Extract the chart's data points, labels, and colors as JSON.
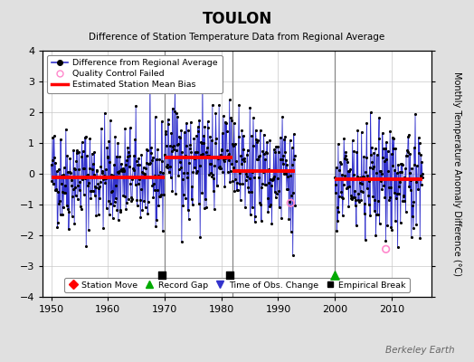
{
  "title": "TOULON",
  "subtitle": "Difference of Station Temperature Data from Regional Average",
  "ylabel": "Monthly Temperature Anomaly Difference (°C)",
  "xlim": [
    1948.5,
    2017
  ],
  "ylim": [
    -4,
    4
  ],
  "yticks": [
    -4,
    -3,
    -2,
    -1,
    0,
    1,
    2,
    3,
    4
  ],
  "xticks": [
    1950,
    1960,
    1970,
    1980,
    1990,
    2000,
    2010
  ],
  "background_color": "#e0e0e0",
  "plot_bg_color": "#ffffff",
  "grid_color": "#c8c8c8",
  "line_color": "#3333cc",
  "fill_color": "#aaaaff",
  "marker_color": "#000000",
  "bias_color": "#ff0000",
  "qc_fail_color": "#ff88cc",
  "vertical_line_color": "#888888",
  "seed": 42,
  "segments": [
    {
      "start": 1950.0,
      "end": 1969.92,
      "bias": -0.12,
      "n_months": 240
    },
    {
      "start": 1970.0,
      "end": 1981.92,
      "bias": 0.52,
      "n_months": 144
    },
    {
      "start": 1982.0,
      "end": 1993.0,
      "bias": 0.08,
      "n_months": 132
    },
    {
      "start": 2000.0,
      "end": 2015.5,
      "bias": -0.18,
      "n_months": 186
    }
  ],
  "vertical_lines": [
    1970.0,
    1982.0,
    2000.0
  ],
  "empirical_breaks": [
    1969.5,
    1981.5
  ],
  "record_gap_markers": [
    2000.0
  ],
  "qc_fail_points": [
    {
      "year": 1992.2,
      "value": -0.95
    },
    {
      "year": 2009.0,
      "value": -2.45
    }
  ],
  "watermark": "Berkeley Earth",
  "watermark_color": "#666666"
}
